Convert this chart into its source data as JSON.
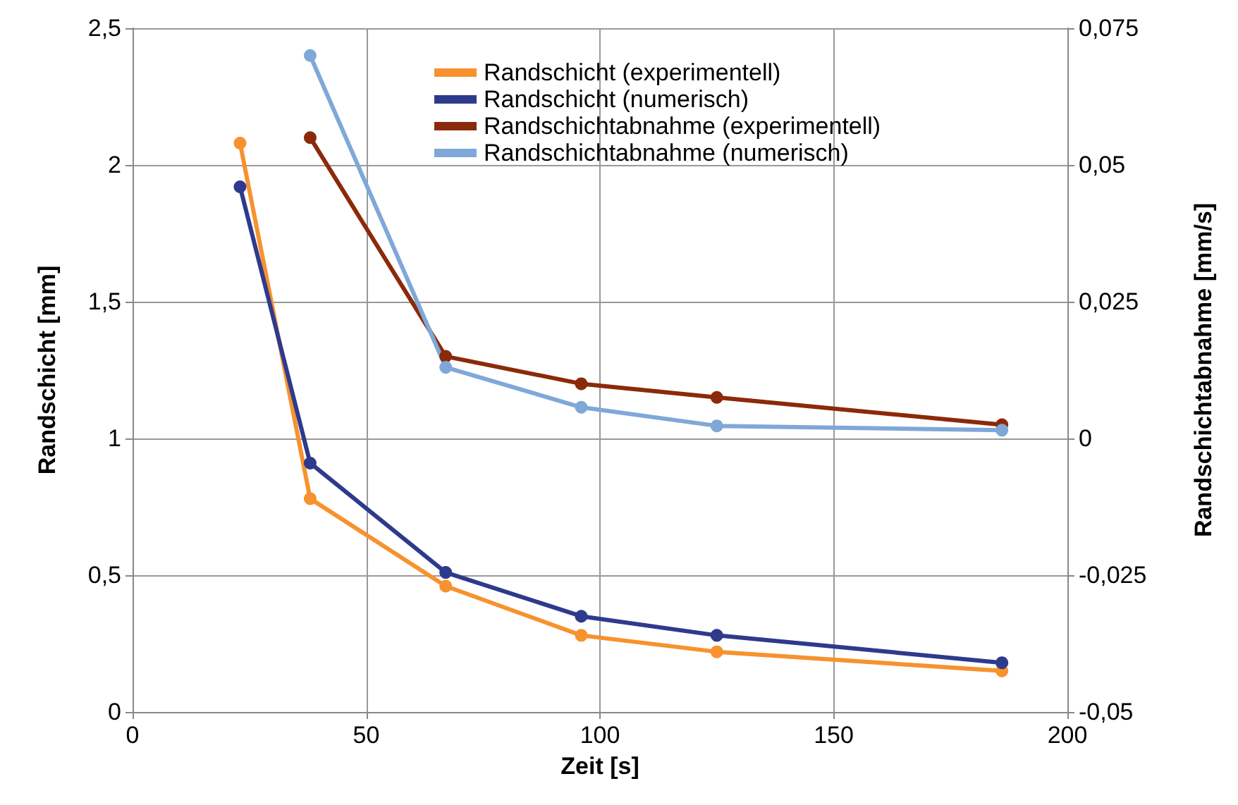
{
  "chart_data": {
    "type": "line",
    "xlabel": "Zeit [s]",
    "ylabel": "Randschicht [mm]",
    "y2label": "Randschichtabnahme [mm/s]",
    "x": [
      23,
      38,
      67,
      96,
      125,
      186
    ],
    "series": [
      {
        "name": "Randschicht (experimentell)",
        "color": "#f7922e",
        "values": [
          2.08,
          0.78,
          0.46,
          0.28,
          0.22,
          0.15
        ]
      },
      {
        "name": "Randschicht (numerisch)",
        "color": "#2e3a8c",
        "values": [
          1.92,
          0.91,
          0.51,
          0.35,
          0.28,
          0.18
        ]
      },
      {
        "name": "Randschichtabnahme (experimentell)",
        "color": "#8b2a0a",
        "axis": "y2",
        "values": [
          null,
          0.055,
          0.015,
          0.01,
          0.0075,
          0.0025
        ]
      },
      {
        "name": "Randschichtabnahme (numerisch)",
        "color": "#7fa8d8",
        "axis": "y2",
        "values": [
          null,
          0.07,
          0.013,
          0.0057,
          0.0023,
          0.0015
        ]
      }
    ],
    "xlim": [
      0,
      200
    ],
    "xticks": [
      0,
      50,
      100,
      150,
      200
    ],
    "ylim": [
      0,
      2.5
    ],
    "yticks": [
      0,
      {
        "value": 0.5,
        "label": "0,5"
      },
      1,
      {
        "value": 1.5,
        "label": "1,5"
      },
      2,
      {
        "value": 2.5,
        "label": "2,5"
      }
    ],
    "y2lim": [
      -0.05,
      0.075
    ],
    "y2ticks": [
      {
        "value": -0.05,
        "label": "-0,05"
      },
      {
        "value": -0.025,
        "label": "-0,025"
      },
      0,
      {
        "value": 0.025,
        "label": "0,025"
      },
      {
        "value": 0.05,
        "label": "0,05"
      },
      {
        "value": 0.075,
        "label": "0,075"
      }
    ],
    "grid": true,
    "legend": "top",
    "marker": "circle",
    "line_style": "solid"
  }
}
